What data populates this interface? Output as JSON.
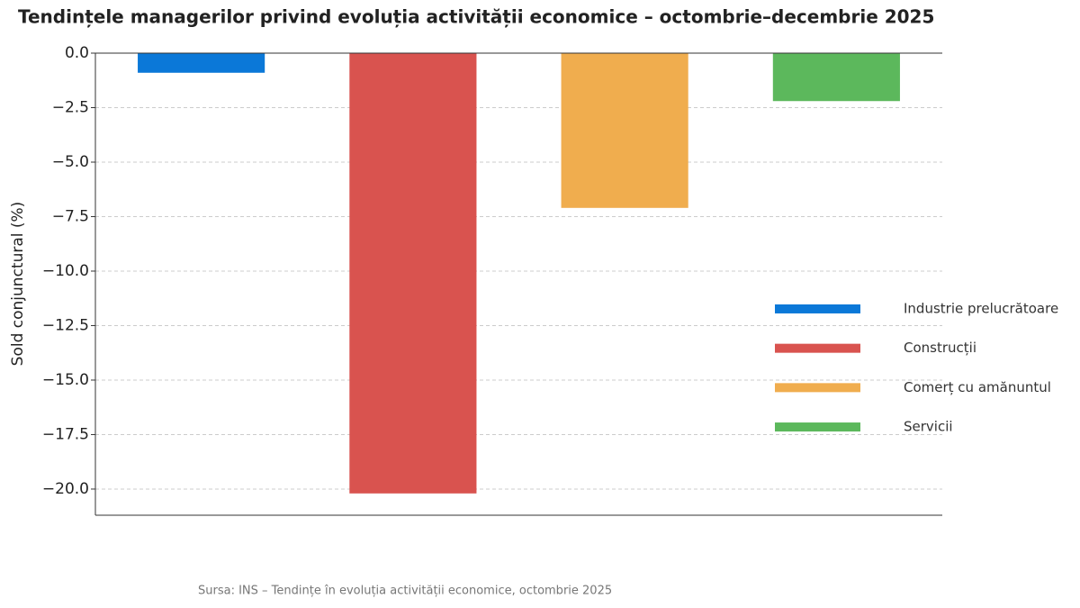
{
  "chart_data": {
    "type": "bar",
    "title": "Tendințele managerilor privind evoluția activității economice – octombrie–decembrie 2025",
    "y_label": "Sold conjunctural (%)",
    "source": "Sursa: INS – Tendințe în evoluția activității economice, octombrie 2025",
    "categories": [
      null,
      null,
      null,
      null
    ],
    "series": [
      {
        "name": "Industrie prelucrătoare",
        "color": "#0b78d8",
        "values": [
          -0.9,
          null,
          null,
          null
        ]
      },
      {
        "name": "Construcții",
        "color": "#d9534f",
        "values": [
          null,
          -20.2,
          null,
          null
        ]
      },
      {
        "name": "Comerț cu amănuntul",
        "color": "#f0ad4e",
        "values": [
          null,
          null,
          -7.1,
          null
        ]
      },
      {
        "name": "Servicii",
        "color": "#5cb85c",
        "values": [
          null,
          null,
          null,
          -2.2
        ]
      }
    ],
    "ylim": [
      -21.2,
      0
    ],
    "yticks": [
      {
        "value": -20,
        "label": "−20.0"
      },
      {
        "value": -17.5,
        "label": "−17.5"
      },
      {
        "value": -15,
        "label": "−15.0"
      },
      {
        "value": -12.5,
        "label": "−12.5"
      },
      {
        "value": -10,
        "label": "−10.0"
      },
      {
        "value": -7.5,
        "label": "−7.5"
      },
      {
        "value": -5,
        "label": "−5.0"
      },
      {
        "value": -2.5,
        "label": "−2.5"
      },
      {
        "value": 0,
        "label": "0.0"
      }
    ],
    "grid": true,
    "legend": "center right"
  }
}
